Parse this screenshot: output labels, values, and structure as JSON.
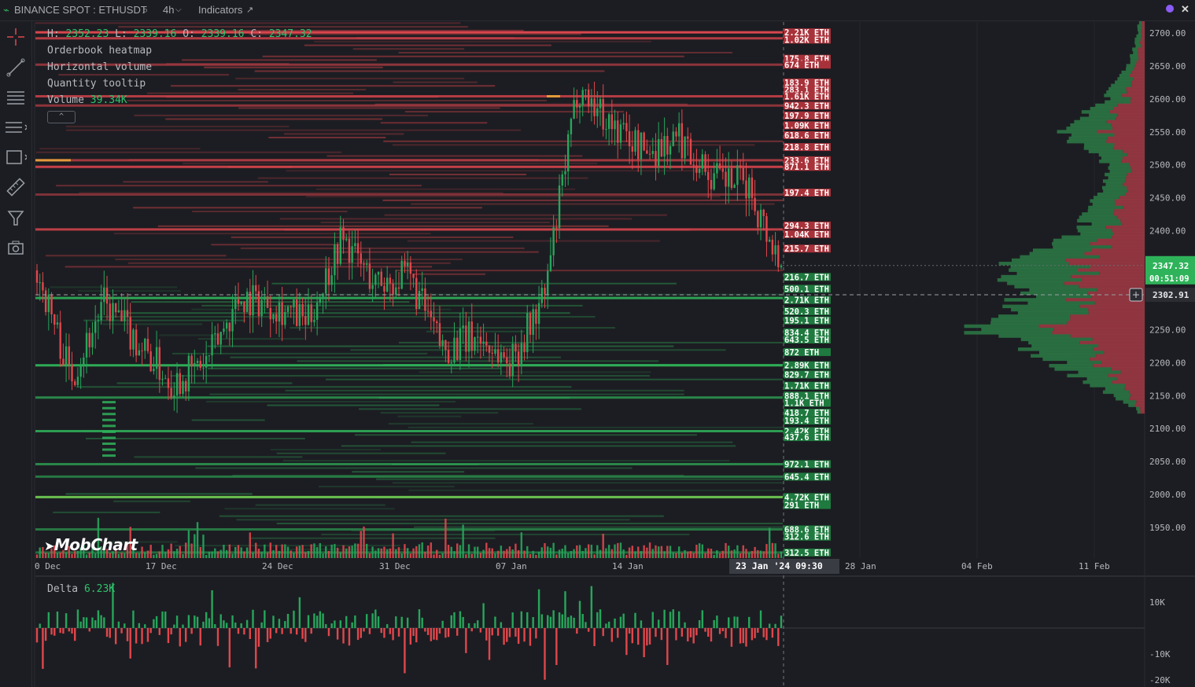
{
  "toolbar": {
    "symbol": "BINANCE SPOT : ETHUSDT",
    "interval": "4h",
    "indicators_label": "Indicators",
    "close_label": "✕"
  },
  "legend": {
    "h_label": "H:",
    "h_value": "2352.23",
    "l_label": "L:",
    "l_value": "2339.16",
    "o_label": "O:",
    "o_value": "2339.16",
    "c_label": "C:",
    "c_value": "2347.32",
    "items": [
      "Orderbook heatmap",
      "Horizontal volume",
      "Quantity tooltip"
    ],
    "volume_label": "Volume",
    "volume_value": "39.34K",
    "collapse_icon": "^"
  },
  "logo_text": "MobChart",
  "delta": {
    "label": "Delta",
    "value": "6.23K"
  },
  "price_axis": {
    "ticks": [
      "2700.00",
      "2650.00",
      "2600.00",
      "2550.00",
      "2500.00",
      "2450.00",
      "2400.00",
      "2350.00",
      "2300.00",
      "2250.00",
      "2200.00",
      "2150.00",
      "2100.00",
      "2050.00",
      "2000.00",
      "1950.00"
    ],
    "last_price": "2347.32",
    "countdown": "00:51:09",
    "crosshair_price": "2302.91",
    "colors": {
      "last": "#2fb35a",
      "crosshair": "#2b2d33"
    }
  },
  "time_axis": {
    "ticks": [
      "0 Dec",
      "17 Dec",
      "24 Dec",
      "31 Dec",
      "07 Jan",
      "14 Jan",
      "28 Jan",
      "04 Feb",
      "11 Feb"
    ],
    "crosshair_label": "23 Jan '24  09:30"
  },
  "delta_axis": {
    "ticks": [
      "10K",
      "-10K",
      "-20K"
    ]
  },
  "orderbook_labels": [
    {
      "text": "2.21K ETH",
      "side": "ask",
      "price": 2701
    },
    {
      "text": "1.02K ETH",
      "side": "ask",
      "price": 2690
    },
    {
      "text": "175.8 ETH",
      "side": "ask",
      "price": 2661
    },
    {
      "text": "674 ETH",
      "side": "ask",
      "price": 2652
    },
    {
      "text": "183.9 ETH",
      "side": "ask",
      "price": 2625
    },
    {
      "text": "283.1 ETH",
      "side": "ask",
      "price": 2614
    },
    {
      "text": "1.61K ETH",
      "side": "ask",
      "price": 2604
    },
    {
      "text": "942.3 ETH",
      "side": "ask",
      "price": 2590
    },
    {
      "text": "197.9 ETH",
      "side": "ask",
      "price": 2575
    },
    {
      "text": "1.09K ETH",
      "side": "ask",
      "price": 2560
    },
    {
      "text": "618.6 ETH",
      "side": "ask",
      "price": 2545
    },
    {
      "text": "218.8 ETH",
      "side": "ask",
      "price": 2527
    },
    {
      "text": "233.6 ETH",
      "side": "ask",
      "price": 2507
    },
    {
      "text": "871.1 ETH",
      "side": "ask",
      "price": 2497
    },
    {
      "text": "197.4 ETH",
      "side": "ask",
      "price": 2458
    },
    {
      "text": "294.3 ETH",
      "side": "ask",
      "price": 2408
    },
    {
      "text": "1.04K ETH",
      "side": "ask",
      "price": 2395
    },
    {
      "text": "215.7 ETH",
      "side": "ask",
      "price": 2373
    },
    {
      "text": "216.7 ETH",
      "side": "bid",
      "price": 2330
    },
    {
      "text": "500.1 ETH",
      "side": "bid",
      "price": 2312
    },
    {
      "text": "2.71K ETH",
      "side": "bid",
      "price": 2295
    },
    {
      "text": "520.3 ETH",
      "side": "bid",
      "price": 2278
    },
    {
      "text": "195.1 ETH",
      "side": "bid",
      "price": 2264
    },
    {
      "text": "834.4 ETH",
      "side": "bid",
      "price": 2246
    },
    {
      "text": "643.5 ETH",
      "side": "bid",
      "price": 2235
    },
    {
      "text": "872 ETH",
      "side": "bid",
      "price": 2216
    },
    {
      "text": "2.89K ETH",
      "side": "bid",
      "price": 2196
    },
    {
      "text": "829.7 ETH",
      "side": "bid",
      "price": 2182
    },
    {
      "text": "1.71K ETH",
      "side": "bid",
      "price": 2165
    },
    {
      "text": "888.1 ETH",
      "side": "bid",
      "price": 2150
    },
    {
      "text": "1.1K ETH",
      "side": "bid",
      "price": 2139
    },
    {
      "text": "418.7 ETH",
      "side": "bid",
      "price": 2124
    },
    {
      "text": "193.4 ETH",
      "side": "bid",
      "price": 2112
    },
    {
      "text": "2.42K ETH",
      "side": "bid",
      "price": 2096
    },
    {
      "text": "437.6 ETH",
      "side": "bid",
      "price": 2087
    },
    {
      "text": "972.1 ETH",
      "side": "bid",
      "price": 2046
    },
    {
      "text": "645.4 ETH",
      "side": "bid",
      "price": 2027
    },
    {
      "text": "4.72K ETH",
      "side": "bid",
      "price": 1996
    },
    {
      "text": "291 ETH",
      "side": "bid",
      "price": 1984
    },
    {
      "text": "688.6 ETH",
      "side": "bid",
      "price": 1947
    },
    {
      "text": "312.6 ETH",
      "side": "bid",
      "price": 1936
    },
    {
      "text": "312.5 ETH",
      "side": "bid",
      "price": 1912
    }
  ],
  "chart_data": {
    "type": "candlestick",
    "symbol": "ETHUSDT",
    "interval": "4h",
    "ylim": [
      1910,
      2720
    ],
    "last_price": 2347.32,
    "crosshair_price": 2302.91,
    "close_trend_anchors": [
      {
        "date": "10 Dec",
        "close": 2340
      },
      {
        "date": "12 Dec",
        "close": 2180
      },
      {
        "date": "14 Dec",
        "close": 2290
      },
      {
        "date": "16 Dec",
        "close": 2230
      },
      {
        "date": "18 Dec",
        "close": 2170
      },
      {
        "date": "20 Dec",
        "close": 2200
      },
      {
        "date": "22 Dec",
        "close": 2300
      },
      {
        "date": "24 Dec",
        "close": 2290
      },
      {
        "date": "26 Dec",
        "close": 2260
      },
      {
        "date": "28 Dec",
        "close": 2390
      },
      {
        "date": "30 Dec",
        "close": 2320
      },
      {
        "date": "01 Jan",
        "close": 2330
      },
      {
        "date": "03 Jan",
        "close": 2220
      },
      {
        "date": "05 Jan",
        "close": 2240
      },
      {
        "date": "07 Jan",
        "close": 2200
      },
      {
        "date": "09 Jan",
        "close": 2300
      },
      {
        "date": "11 Jan",
        "close": 2620
      },
      {
        "date": "13 Jan",
        "close": 2560
      },
      {
        "date": "15 Jan",
        "close": 2520
      },
      {
        "date": "17 Jan",
        "close": 2540
      },
      {
        "date": "19 Jan",
        "close": 2480
      },
      {
        "date": "21 Jan",
        "close": 2470
      },
      {
        "date": "23 Jan",
        "close": 2347
      }
    ],
    "volume_profile": {
      "price_levels": [
        2700,
        2650,
        2600,
        2550,
        2500,
        2450,
        2400,
        2350,
        2300,
        2250,
        2200,
        2150,
        2130
      ],
      "volume_rel": [
        0.04,
        0.1,
        0.24,
        0.5,
        0.22,
        0.3,
        0.38,
        0.8,
        0.76,
        1.0,
        0.55,
        0.2,
        0.05
      ]
    },
    "delta_ylim": [
      -20000,
      15000
    ]
  },
  "colors": {
    "background": "#1c1d22",
    "bull": "#26a65b",
    "bear": "#e0474c",
    "ask_line": "#d9454c",
    "bid_line": "#2fb35a",
    "highlight": "#e8a43a"
  }
}
